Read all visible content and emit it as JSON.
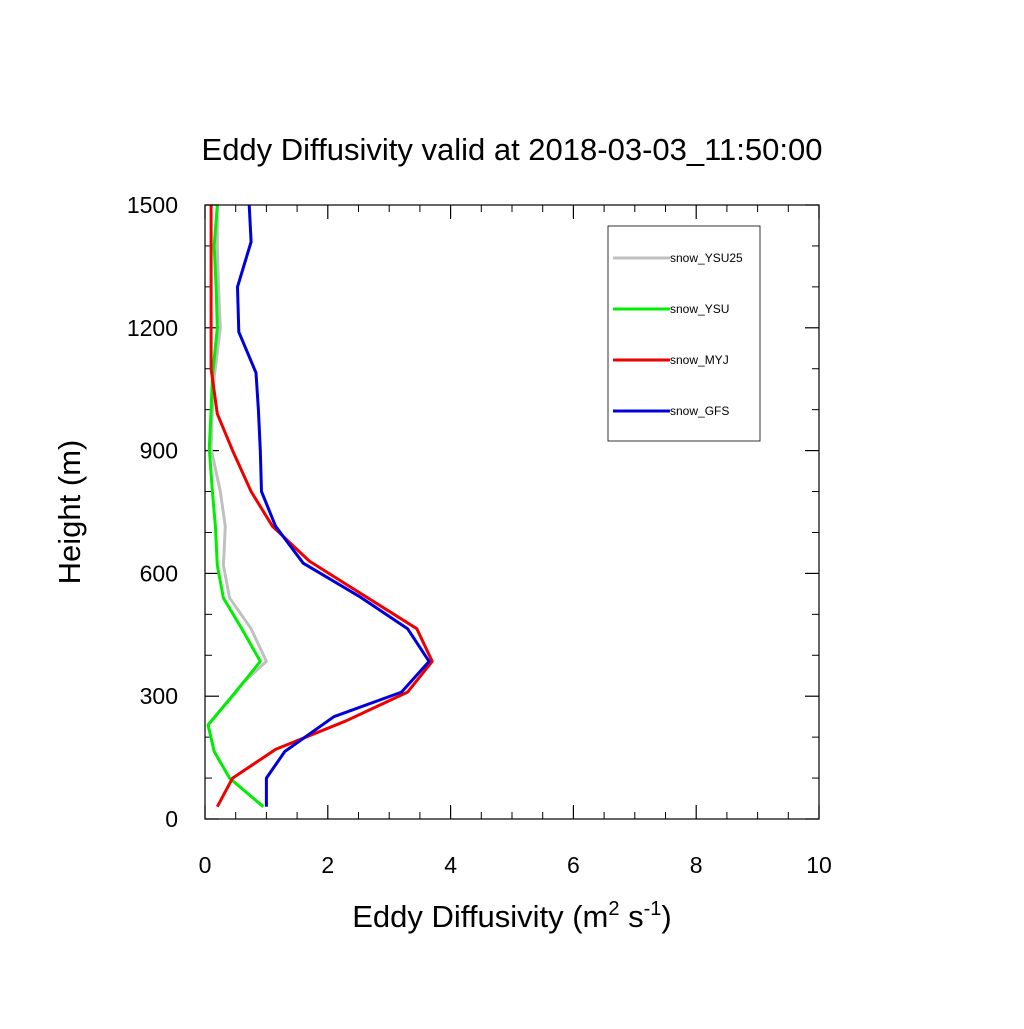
{
  "chart_data": {
    "type": "line",
    "title": "Eddy Diffusivity valid at 2018-03-03_11:50:00",
    "xlabel": {
      "base": "Eddy Diffusivity (m",
      "sup1": "2",
      "mid": " s",
      "sup2": "-1",
      "end": ")"
    },
    "ylabel": "Height (m)",
    "xlim": [
      0,
      10
    ],
    "ylim": [
      0,
      1500
    ],
    "xticks": [
      0,
      2,
      4,
      6,
      8,
      10
    ],
    "xtick_labels": [
      "0",
      "2",
      "4",
      "6",
      "8",
      "10"
    ],
    "yticks": [
      0,
      300,
      600,
      900,
      1200,
      1500
    ],
    "ytick_labels": [
      "0",
      "300",
      "600",
      "900",
      "1200",
      "1500"
    ],
    "x_minor_step": 0.5,
    "y_minor_step": 100,
    "grid": false,
    "legend_position": "top-right",
    "series": [
      {
        "name": "snow_YSU25",
        "color": "#c0c0c0",
        "points": [
          [
            0.95,
            30
          ],
          [
            0.4,
            100
          ],
          [
            0.15,
            165
          ],
          [
            0.05,
            230
          ],
          [
            0.6,
            330
          ],
          [
            1.0,
            385
          ],
          [
            0.75,
            465
          ],
          [
            0.4,
            540
          ],
          [
            0.3,
            620
          ],
          [
            0.33,
            715
          ],
          [
            0.25,
            800
          ],
          [
            0.1,
            905
          ],
          [
            0.12,
            1000
          ],
          [
            0.15,
            1080
          ],
          [
            0.25,
            1200
          ],
          [
            0.22,
            1300
          ],
          [
            0.2,
            1400
          ],
          [
            0.2,
            1500
          ]
        ]
      },
      {
        "name": "snow_YSU",
        "color": "#00ee00",
        "points": [
          [
            0.95,
            30
          ],
          [
            0.4,
            100
          ],
          [
            0.15,
            165
          ],
          [
            0.05,
            230
          ],
          [
            0.5,
            310
          ],
          [
            0.9,
            385
          ],
          [
            0.6,
            465
          ],
          [
            0.3,
            540
          ],
          [
            0.2,
            620
          ],
          [
            0.17,
            715
          ],
          [
            0.12,
            800
          ],
          [
            0.07,
            905
          ],
          [
            0.1,
            1000
          ],
          [
            0.12,
            1080
          ],
          [
            0.2,
            1200
          ],
          [
            0.18,
            1300
          ],
          [
            0.15,
            1400
          ],
          [
            0.2,
            1500
          ]
        ]
      },
      {
        "name": "snow_MYJ",
        "color": "#ee0000",
        "points": [
          [
            0.2,
            30
          ],
          [
            0.45,
            100
          ],
          [
            1.15,
            170
          ],
          [
            2.3,
            240
          ],
          [
            3.3,
            310
          ],
          [
            3.7,
            385
          ],
          [
            3.45,
            465
          ],
          [
            2.6,
            545
          ],
          [
            1.7,
            630
          ],
          [
            1.1,
            715
          ],
          [
            0.75,
            800
          ],
          [
            0.45,
            900
          ],
          [
            0.2,
            990
          ],
          [
            0.1,
            1100
          ],
          [
            0.1,
            1200
          ],
          [
            0.1,
            1300
          ],
          [
            0.1,
            1400
          ],
          [
            0.1,
            1500
          ]
        ]
      },
      {
        "name": "snow_GFS",
        "color": "#0000dd",
        "points": [
          [
            1.0,
            30
          ],
          [
            1.0,
            100
          ],
          [
            1.3,
            165
          ],
          [
            2.1,
            250
          ],
          [
            3.2,
            310
          ],
          [
            3.65,
            385
          ],
          [
            3.3,
            465
          ],
          [
            2.5,
            545
          ],
          [
            1.6,
            625
          ],
          [
            1.15,
            715
          ],
          [
            0.92,
            800
          ],
          [
            0.9,
            900
          ],
          [
            0.87,
            1000
          ],
          [
            0.83,
            1090
          ],
          [
            0.55,
            1190
          ],
          [
            0.53,
            1300
          ],
          [
            0.75,
            1410
          ],
          [
            0.72,
            1500
          ]
        ]
      }
    ]
  }
}
